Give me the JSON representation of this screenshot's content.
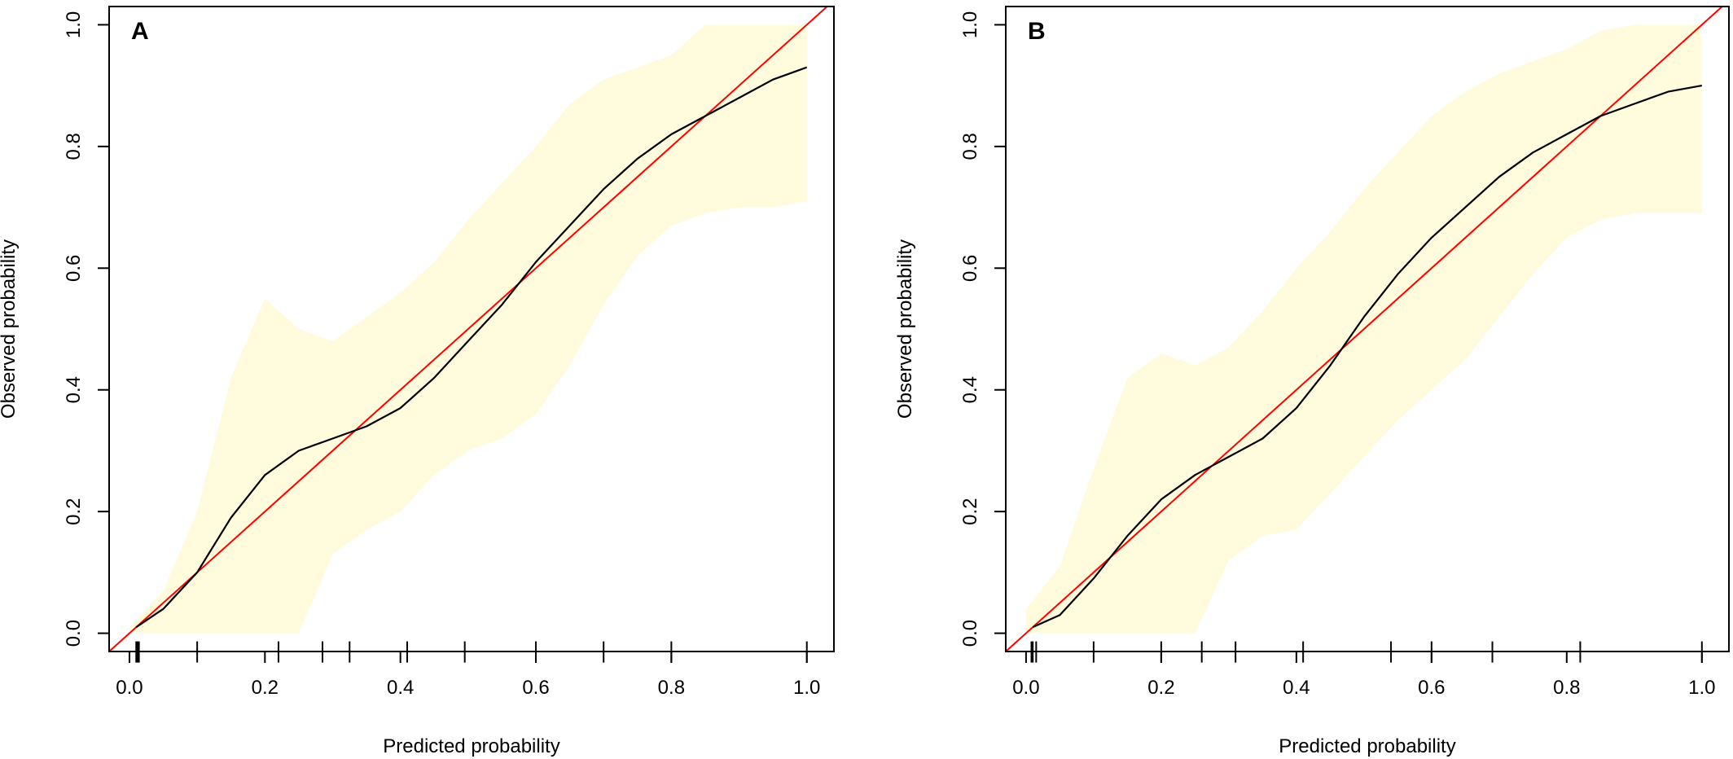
{
  "chart_data": [
    {
      "type": "line",
      "panel_label": "A",
      "xlabel": "Predicted probability",
      "ylabel": "Observed probability",
      "xlim": [
        -0.03,
        1.04
      ],
      "ylim": [
        -0.03,
        1.03
      ],
      "xticks": [
        "0.0",
        "0.2",
        "0.4",
        "0.6",
        "0.8",
        "1.0"
      ],
      "yticks": [
        "0.0",
        "0.2",
        "0.4",
        "0.6",
        "0.8",
        "1.0"
      ],
      "grid": false,
      "ideal_line": {
        "x": [
          -0.03,
          1.04
        ],
        "y": [
          -0.03,
          1.04
        ],
        "color": "#ff0000"
      },
      "calibration_curve": {
        "color": "#000000",
        "x": [
          0.01,
          0.05,
          0.1,
          0.15,
          0.2,
          0.25,
          0.3,
          0.35,
          0.4,
          0.45,
          0.5,
          0.55,
          0.6,
          0.65,
          0.7,
          0.75,
          0.8,
          0.85,
          0.9,
          0.95,
          1.0
        ],
        "y": [
          0.01,
          0.04,
          0.1,
          0.19,
          0.26,
          0.3,
          0.32,
          0.34,
          0.37,
          0.42,
          0.48,
          0.54,
          0.61,
          0.67,
          0.73,
          0.78,
          0.82,
          0.85,
          0.88,
          0.91,
          0.93
        ]
      },
      "confidence_band": {
        "color": "#fffbdc",
        "x": [
          0.0,
          0.05,
          0.1,
          0.15,
          0.2,
          0.25,
          0.3,
          0.35,
          0.4,
          0.45,
          0.5,
          0.55,
          0.6,
          0.65,
          0.7,
          0.75,
          0.8,
          0.85,
          0.9,
          0.95,
          1.0
        ],
        "upper": [
          0.01,
          0.07,
          0.2,
          0.42,
          0.55,
          0.5,
          0.48,
          0.52,
          0.56,
          0.61,
          0.68,
          0.74,
          0.8,
          0.87,
          0.91,
          0.93,
          0.95,
          1.0,
          1.0,
          1.0,
          1.0
        ],
        "lower": [
          0.0,
          0.0,
          0.0,
          0.0,
          0.0,
          0.0,
          0.13,
          0.17,
          0.2,
          0.26,
          0.3,
          0.32,
          0.36,
          0.44,
          0.54,
          0.62,
          0.67,
          0.69,
          0.7,
          0.7,
          0.71
        ]
      },
      "rug_x": [
        0.01,
        0.012,
        0.014,
        0.1,
        0.22,
        0.285,
        0.325,
        0.41,
        0.495,
        0.6,
        0.7,
        0.8,
        1.0
      ]
    },
    {
      "type": "line",
      "panel_label": "B",
      "xlabel": "Predicted probability",
      "ylabel": "Observed probability",
      "xlim": [
        -0.03,
        1.04
      ],
      "ylim": [
        -0.03,
        1.03
      ],
      "xticks": [
        "0.0",
        "0.2",
        "0.4",
        "0.6",
        "0.8",
        "1.0"
      ],
      "yticks": [
        "0.0",
        "0.2",
        "0.4",
        "0.6",
        "0.8",
        "1.0"
      ],
      "grid": false,
      "ideal_line": {
        "x": [
          -0.03,
          1.04
        ],
        "y": [
          -0.03,
          1.04
        ],
        "color": "#ff0000"
      },
      "calibration_curve": {
        "color": "#000000",
        "x": [
          0.01,
          0.05,
          0.1,
          0.15,
          0.2,
          0.25,
          0.3,
          0.35,
          0.4,
          0.45,
          0.5,
          0.55,
          0.6,
          0.65,
          0.7,
          0.75,
          0.8,
          0.85,
          0.9,
          0.95,
          1.0
        ],
        "y": [
          0.01,
          0.03,
          0.09,
          0.16,
          0.22,
          0.26,
          0.29,
          0.32,
          0.37,
          0.44,
          0.52,
          0.59,
          0.65,
          0.7,
          0.75,
          0.79,
          0.82,
          0.85,
          0.87,
          0.89,
          0.9
        ]
      },
      "confidence_band": {
        "color": "#fffbdc",
        "x": [
          0.0,
          0.05,
          0.1,
          0.15,
          0.2,
          0.25,
          0.3,
          0.35,
          0.4,
          0.45,
          0.5,
          0.55,
          0.6,
          0.65,
          0.7,
          0.75,
          0.8,
          0.85,
          0.9,
          0.95,
          1.0
        ],
        "upper": [
          0.04,
          0.11,
          0.27,
          0.42,
          0.46,
          0.44,
          0.47,
          0.53,
          0.6,
          0.66,
          0.73,
          0.79,
          0.85,
          0.89,
          0.92,
          0.94,
          0.96,
          0.99,
          1.0,
          1.0,
          1.0
        ],
        "lower": [
          0.0,
          0.0,
          0.0,
          0.0,
          0.0,
          0.0,
          0.12,
          0.16,
          0.17,
          0.23,
          0.29,
          0.35,
          0.4,
          0.45,
          0.52,
          0.59,
          0.65,
          0.68,
          0.69,
          0.69,
          0.69
        ]
      },
      "rug_x": [
        0.008,
        0.01,
        0.015,
        0.1,
        0.2,
        0.26,
        0.31,
        0.41,
        0.54,
        0.6,
        0.69,
        0.82,
        1.0
      ]
    }
  ]
}
